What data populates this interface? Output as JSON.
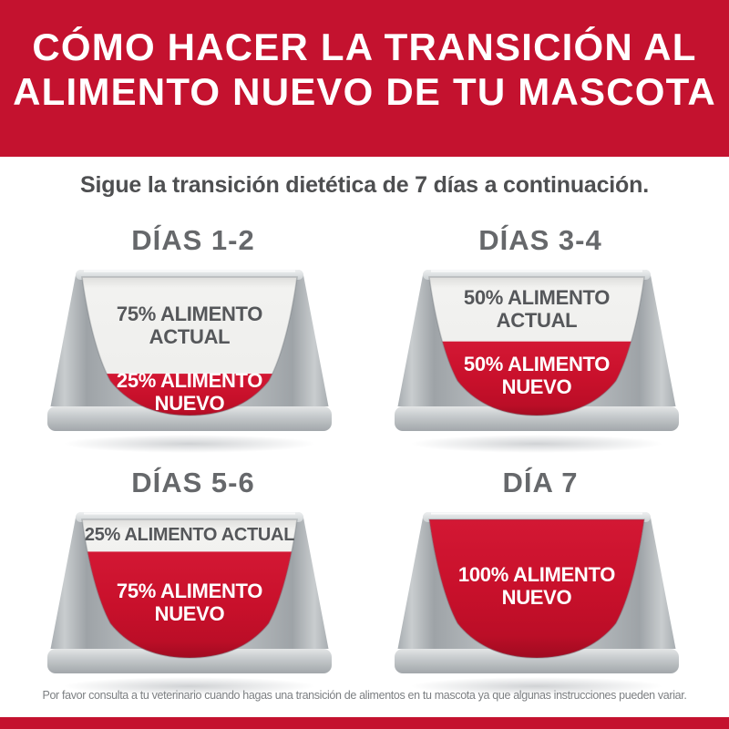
{
  "header": {
    "line1": "CÓMO HACER LA TRANSICIÓN AL",
    "line2": "ALIMENTO NUEVO DE TU MASCOTA"
  },
  "subtitle": "Sigue la transición dietética de 7 días a continuación.",
  "bowls": [
    {
      "title": "DÍAS 1-2",
      "current_pct": 75,
      "new_pct": 25,
      "current_label": "75% ALIMENTO ACTUAL",
      "new_label": "25% ALIMENTO NUEVO",
      "current_lines": [
        "75% ALIMENTO",
        "ACTUAL"
      ],
      "new_lines": [
        "25% ALIMENTO",
        "NUEVO"
      ]
    },
    {
      "title": "DÍAS 3-4",
      "current_pct": 50,
      "new_pct": 50,
      "current_label": "50% ALIMENTO ACTUAL",
      "new_label": "50% ALIMENTO NUEVO",
      "current_lines": [
        "50% ALIMENTO",
        "ACTUAL"
      ],
      "new_lines": [
        "50% ALIMENTO",
        "NUEVO"
      ]
    },
    {
      "title": "DÍAS 5-6",
      "current_pct": 25,
      "new_pct": 75,
      "current_label": "25% ALIMENTO ACTUAL",
      "new_label": "75% ALIMENTO NUEVO",
      "current_lines": [
        "25% ALIMENTO ACTUAL"
      ],
      "new_lines": [
        "75% ALIMENTO",
        "NUEVO"
      ]
    },
    {
      "title": "DÍA 7",
      "current_pct": 0,
      "new_pct": 100,
      "current_label": "",
      "new_label": "100% ALIMENTO NUEVO",
      "current_lines": [],
      "new_lines": [
        "100% ALIMENTO",
        "NUEVO"
      ]
    }
  ],
  "footer": "Por favor consulta a tu veterinario cuando hagas una transición de alimentos en tu mascota ya que algunas instrucciones pueden variar.",
  "colors": {
    "banner_red": "#C4122F",
    "food_red": "#C8102B",
    "food_red_dark": "#9B0A1F",
    "bowl_gray": "#B3B8BB",
    "bowl_gray_dark": "#9EA3A7",
    "cavity_white": "#F2F2F0",
    "heading_gray": "#66686B",
    "label_gray": "#55575A",
    "footer_gray": "#7C7F82"
  }
}
